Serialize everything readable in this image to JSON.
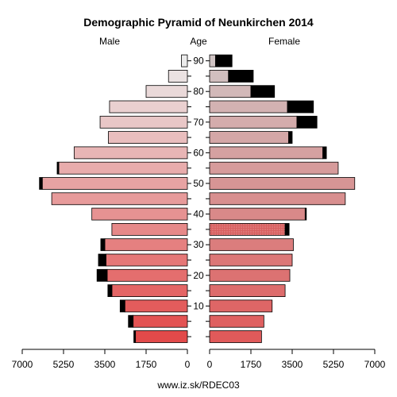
{
  "chart_data": {
    "type": "bar",
    "title": "Demographic Pyramid of Neunkirchen 2014",
    "left_label": "Male",
    "center_label": "Age",
    "right_label": "Female",
    "footer": "www.iz.sk/RDEC03",
    "age_groups": [
      "0-4",
      "5-9",
      "10-14",
      "15-19",
      "20-24",
      "25-29",
      "30-34",
      "35-39",
      "40-44",
      "45-49",
      "50-54",
      "55-59",
      "60-64",
      "65-69",
      "70-74",
      "75-79",
      "80-84",
      "85-89",
      "90+"
    ],
    "age_ticks": [
      "10",
      "20",
      "30",
      "40",
      "50",
      "60",
      "70",
      "80",
      "90"
    ],
    "male": {
      "domestic": [
        2200,
        2300,
        2650,
        3200,
        3400,
        3450,
        3500,
        3200,
        4050,
        5750,
        6150,
        5450,
        4800,
        3350,
        3700,
        3300,
        1750,
        800,
        250
      ],
      "foreign": [
        70,
        200,
        200,
        170,
        430,
        320,
        170,
        0,
        0,
        0,
        120,
        70,
        0,
        0,
        0,
        0,
        0,
        0,
        0
      ]
    },
    "female": {
      "domestic": [
        2200,
        2300,
        2650,
        3200,
        3400,
        3500,
        3550,
        3200,
        4050,
        5750,
        6150,
        5450,
        4800,
        3350,
        3700,
        3300,
        1750,
        800,
        250
      ],
      "foreign": [
        0,
        0,
        0,
        0,
        0,
        0,
        0,
        170,
        50,
        0,
        0,
        0,
        150,
        150,
        850,
        1100,
        1000,
        1050,
        700
      ]
    },
    "xlim_left": [
      7000,
      0
    ],
    "xlim_right": [
      0,
      7000
    ],
    "xticks_left": [
      "7000",
      "5250",
      "3500",
      "1750",
      "0"
    ],
    "xticks_right": [
      "0",
      "1750",
      "3500",
      "5250",
      "7000"
    ],
    "colors": {
      "foreign": "#000000",
      "male_young": "#e24a4a",
      "male_old": "#ebebeb",
      "female_young": "#e05a5a",
      "female_old": "#d0c4c4"
    }
  }
}
